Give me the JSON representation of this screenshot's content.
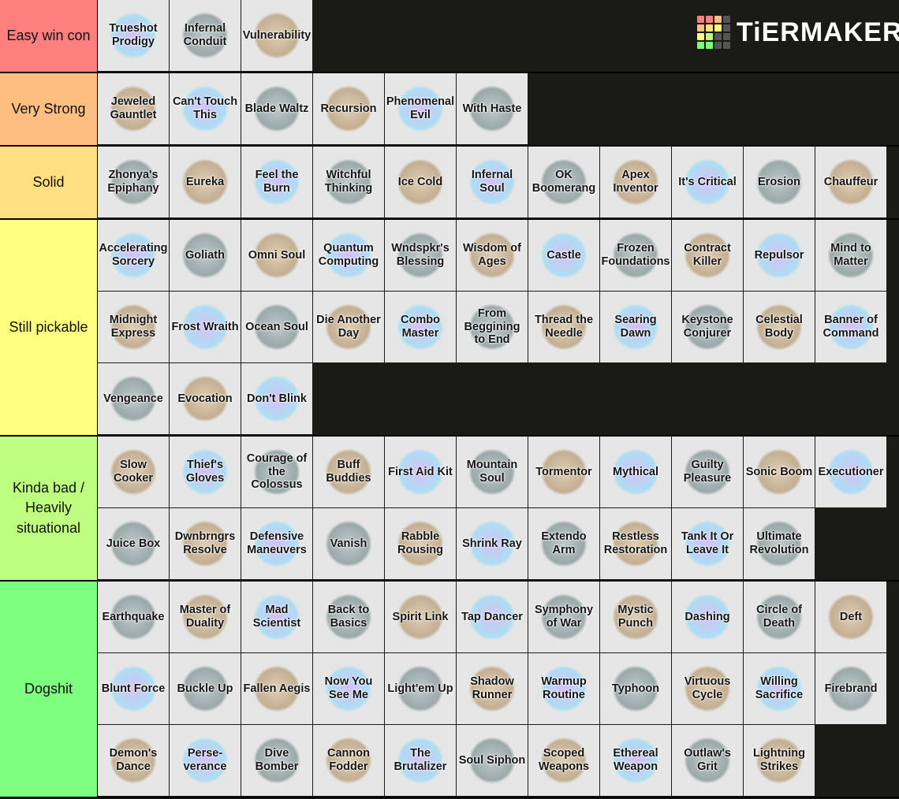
{
  "logo": "TiERMAKER",
  "tiers": [
    {
      "label": "Easy win con",
      "color": "#ff7f7f",
      "items": [
        "Trueshot Prodigy",
        "Infernal Conduit",
        "Vulnerability"
      ]
    },
    {
      "label": "Very Strong",
      "color": "#ffbf7f",
      "items": [
        "Jeweled Gauntlet",
        "Can't Touch This",
        "Blade Waltz",
        "Recursion",
        "Phenomenal Evil",
        "With Haste"
      ]
    },
    {
      "label": "Solid",
      "color": "#ffdf7f",
      "items": [
        "Zhonya's Epiphany",
        "Eureka",
        "Feel the Burn",
        "Witchful Thinking",
        "Ice Cold",
        "Infernal Soul",
        "OK Boomerang",
        "Apex Inventor",
        "It's Critical",
        "Erosion",
        "Chauffeur"
      ]
    },
    {
      "label": "Still pickable",
      "color": "#ffff7f",
      "items": [
        "Accelerating Sorcery",
        "Goliath",
        "Omni Soul",
        "Quantum Computing",
        "Wndspkr's Blessing",
        "Wisdom of Ages",
        "Castle",
        "Frozen Foundations",
        "Contract Killer",
        "Repulsor",
        "Mind to Matter",
        "Midnight Express",
        "Frost Wraith",
        "Ocean Soul",
        "Die Another Day",
        "Combo Master",
        "From Beggining to End",
        "Thread the Needle",
        "Searing Dawn",
        "Keystone Conjurer",
        "Celestial Body",
        "Banner of Command",
        "Vengeance",
        "Evocation",
        "Don't Blink"
      ]
    },
    {
      "label": "Kinda bad / Heavily situational",
      "color": "#bfff7f",
      "items": [
        "Slow Cooker",
        "Thief's Gloves",
        "Courage of the Colossus",
        "Buff Buddies",
        "First Aid Kit",
        "Mountain Soul",
        "Tormentor",
        "Mythical",
        "Guilty Pleasure",
        "Sonic Boom",
        "Executioner",
        "Juice Box",
        "Dwnbrngrs Resolve",
        "Defensive Maneuvers",
        "Vanish",
        "Rabble Rousing",
        "Shrink Ray",
        "Extendo Arm",
        "Restless Restoration",
        "Tank It Or Leave It",
        "Ultimate Revolution"
      ]
    },
    {
      "label": "Dogshit",
      "color": "#7fff7f",
      "items": [
        "Earthquake",
        "Master of Duality",
        "Mad Scientist",
        "Back to Basics",
        "Spirit Link",
        "Tap Dancer",
        "Symphony of War",
        "Mystic Punch",
        "Dashing",
        "Circle of Death",
        "Deft",
        "Blunt Force",
        "Buckle Up",
        "Fallen Aegis",
        "Now You See Me",
        "Light'em Up",
        "Shadow Runner",
        "Warmup Routine",
        "Typhoon",
        "Virtuous Cycle",
        "Willing Sacrifice",
        "Firebrand",
        "Demon's Dance",
        "Perse-verance",
        "Dive Bomber",
        "Cannon Fodder",
        "The Brutalizer",
        "Soul Siphon",
        "Scoped Weapons",
        "Ethereal Weapon",
        "Outlaw's Grit",
        "Lightning Strikes"
      ]
    }
  ]
}
